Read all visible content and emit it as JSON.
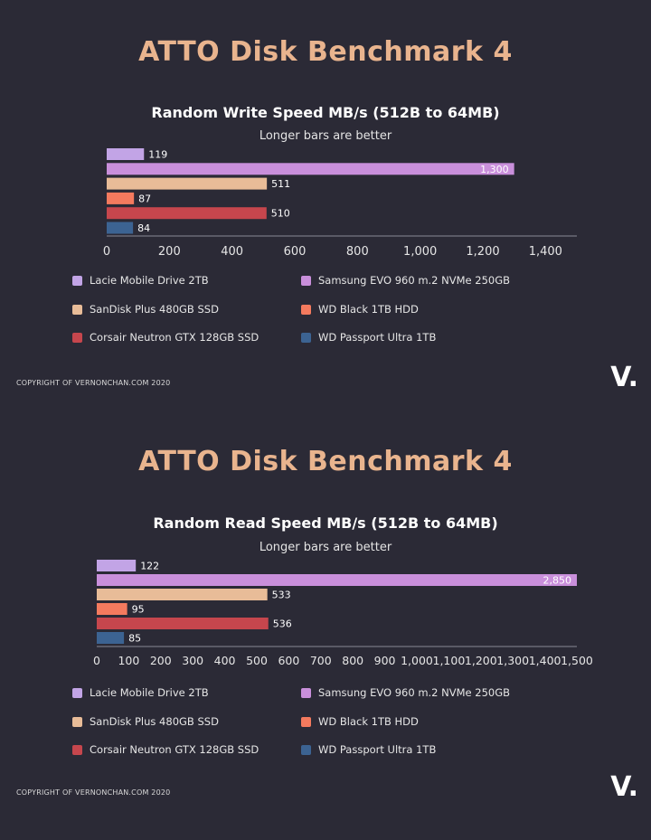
{
  "panels": [
    {
      "main_title": "ATTO Disk Benchmark 4",
      "copyright": "COPYRIGHT OF VERNONCHAN.COM 2020",
      "logo": "V.",
      "chart_data": {
        "type": "bar",
        "orientation": "horizontal",
        "title": "Random Write Speed MB/s (512B to 64MB)",
        "subtitle": "Longer bars are better",
        "categories": [
          "Lacie Mobile Drive 2TB",
          "Samsung EVO 960 m.2 NVMe 250GB",
          "SanDisk Plus 480GB SSD",
          "WD Black 1TB HDD",
          "Corsair Neutron GTX 128GB SSD",
          "WD Passport Ultra 1TB"
        ],
        "values": [
          119,
          1300,
          511,
          87,
          510,
          84
        ],
        "value_labels": [
          "119",
          "1,300",
          "511",
          "87",
          "510",
          "84"
        ],
        "colors": [
          "#c2a4e6",
          "#c98fdb",
          "#e8bc98",
          "#f47a5e",
          "#c6464d",
          "#3c6392"
        ],
        "xlim": [
          0,
          1500
        ],
        "xticks": [
          0,
          200,
          400,
          600,
          800,
          1000,
          1200,
          1400
        ],
        "xtick_labels": [
          "0",
          "200",
          "400",
          "600",
          "800",
          "1,000",
          "1,200",
          "1,400"
        ],
        "legend_position": "bottom"
      }
    },
    {
      "main_title": "ATTO Disk Benchmark 4",
      "copyright": "COPYRIGHT OF VERNONCHAN.COM 2020",
      "logo": "V.",
      "chart_data": {
        "type": "bar",
        "orientation": "horizontal",
        "title": "Random Read Speed MB/s (512B to 64MB)",
        "subtitle": "Longer bars are better",
        "categories": [
          "Lacie Mobile Drive 2TB",
          "Samsung EVO 960 m.2 NVMe 250GB",
          "SanDisk Plus 480GB SSD",
          "WD Black 1TB HDD",
          "Corsair Neutron GTX 128GB SSD",
          "WD Passport Ultra 1TB"
        ],
        "values": [
          122,
          2850,
          533,
          95,
          536,
          85
        ],
        "value_labels": [
          "122",
          "2,850",
          "533",
          "95",
          "536",
          "85"
        ],
        "colors": [
          "#c2a4e6",
          "#c98fdb",
          "#e8bc98",
          "#f47a5e",
          "#c6464d",
          "#3c6392"
        ],
        "xlim": [
          0,
          1500
        ],
        "xticks": [
          0,
          100,
          200,
          300,
          400,
          500,
          600,
          700,
          800,
          900,
          1000,
          1100,
          1200,
          1300,
          1400,
          1500
        ],
        "xtick_labels": [
          "0",
          "100",
          "200",
          "300",
          "400",
          "500",
          "600",
          "700",
          "800",
          "900",
          "1,000",
          "1,100",
          "1,200",
          "1,300",
          "1,400",
          "1,500"
        ],
        "legend_position": "bottom"
      }
    }
  ]
}
